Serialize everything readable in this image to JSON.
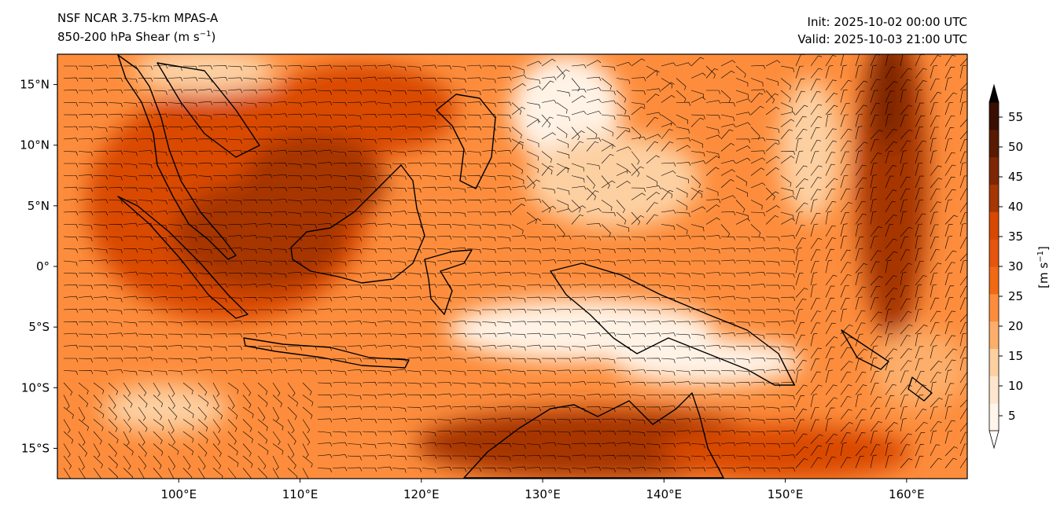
{
  "titles": {
    "left_line1": "NSF NCAR 3.75-km MPAS-A",
    "left_line2_prefix": "850-200 hPa Shear (m s",
    "left_line2_sup": "−1",
    "left_line2_suffix": ")",
    "right_line1": "Init: 2025-10-02 00:00 UTC",
    "right_line2": "Valid: 2025-10-03 21:00 UTC"
  },
  "map": {
    "lon_range": [
      90,
      165
    ],
    "lat_range": [
      -17.5,
      17.5
    ],
    "lon_ticks": [
      {
        "value": 100,
        "label": "100°E"
      },
      {
        "value": 110,
        "label": "110°E"
      },
      {
        "value": 120,
        "label": "120°E"
      },
      {
        "value": 130,
        "label": "130°E"
      },
      {
        "value": 140,
        "label": "140°E"
      },
      {
        "value": 150,
        "label": "150°E"
      },
      {
        "value": 160,
        "label": "160°E"
      }
    ],
    "lat_ticks": [
      {
        "value": 15,
        "label": "15°N"
      },
      {
        "value": 10,
        "label": "10°N"
      },
      {
        "value": 5,
        "label": "5°N"
      },
      {
        "value": 0,
        "label": "0°"
      },
      {
        "value": -5,
        "label": "5°S"
      },
      {
        "value": -10,
        "label": "10°S"
      },
      {
        "value": -15,
        "label": "15°S"
      }
    ],
    "fill_colors": {
      "calm": "#fff3e6",
      "light": "#fdd0a2",
      "moderate": "#fd8d3c",
      "strong": "#e6550d",
      "very_strong": "#a63603",
      "extreme": "#7f2704"
    }
  },
  "colorbar": {
    "label_prefix": "[m s",
    "label_sup": "−1",
    "label_suffix": "]",
    "extend": "both",
    "ticks": [
      5,
      10,
      15,
      20,
      25,
      30,
      35,
      40,
      45,
      50,
      55
    ],
    "tick_labels": [
      "5",
      "10",
      "15",
      "20",
      "25",
      "30",
      "35",
      "40",
      "45",
      "50",
      "55"
    ],
    "colors": [
      "#fff5eb",
      "#fee6ce",
      "#fdd0a2",
      "#fdae6b",
      "#fd8d3c",
      "#f16913",
      "#e6550d",
      "#d94801",
      "#a63603",
      "#7f2704",
      "#5a1a02",
      "#3a0f01"
    ],
    "under_color": "#ffffff",
    "over_color": "#000000"
  }
}
